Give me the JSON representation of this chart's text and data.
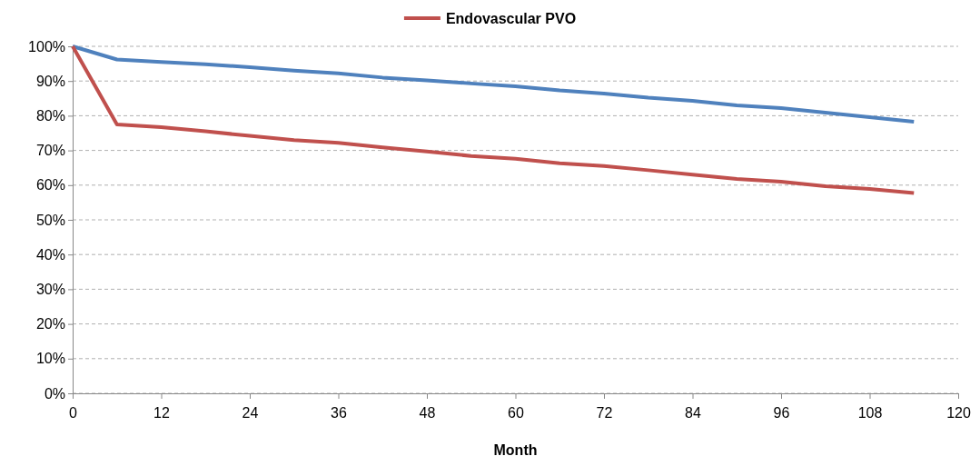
{
  "chart_data": {
    "type": "line",
    "xlabel": "Month",
    "x": [
      0,
      6,
      12,
      18,
      24,
      30,
      36,
      42,
      48,
      54,
      60,
      66,
      72,
      78,
      84,
      90,
      96,
      102,
      108,
      114
    ],
    "series": [
      {
        "color": "#4f81bd",
        "values": [
          100,
          96.2,
          95.5,
          94.8,
          94,
          93,
          92.2,
          91,
          90.2,
          89.3,
          88.5,
          87.3,
          86.4,
          85.2,
          84.3,
          83,
          82.2,
          80.9,
          79.6,
          78.3
        ]
      },
      {
        "name": "Endovascular PVO",
        "color": "#c0504d",
        "values": [
          100,
          77.5,
          76.7,
          75.5,
          74.2,
          73,
          72.2,
          70.9,
          69.7,
          68.4,
          67.6,
          66.3,
          65.5,
          64.3,
          63,
          61.8,
          61,
          59.7,
          58.9,
          57.7
        ]
      }
    ],
    "xlim": [
      0,
      120
    ],
    "xticks": [
      0,
      12,
      24,
      36,
      48,
      60,
      72,
      84,
      96,
      108,
      120
    ],
    "ylim": [
      0,
      100
    ],
    "yticks": [
      {
        "value": 0,
        "label": "0%"
      },
      {
        "value": 10,
        "label": "10%"
      },
      {
        "value": 20,
        "label": "20%"
      },
      {
        "value": 30,
        "label": "30%"
      },
      {
        "value": 40,
        "label": "40%"
      },
      {
        "value": 50,
        "label": "50%"
      },
      {
        "value": 60,
        "label": "60%"
      },
      {
        "value": 70,
        "label": "70%"
      },
      {
        "value": 80,
        "label": "80%"
      },
      {
        "value": 90,
        "label": "90%"
      },
      {
        "value": 100,
        "label": "100%"
      }
    ],
    "grid": "y",
    "legend": "top"
  }
}
